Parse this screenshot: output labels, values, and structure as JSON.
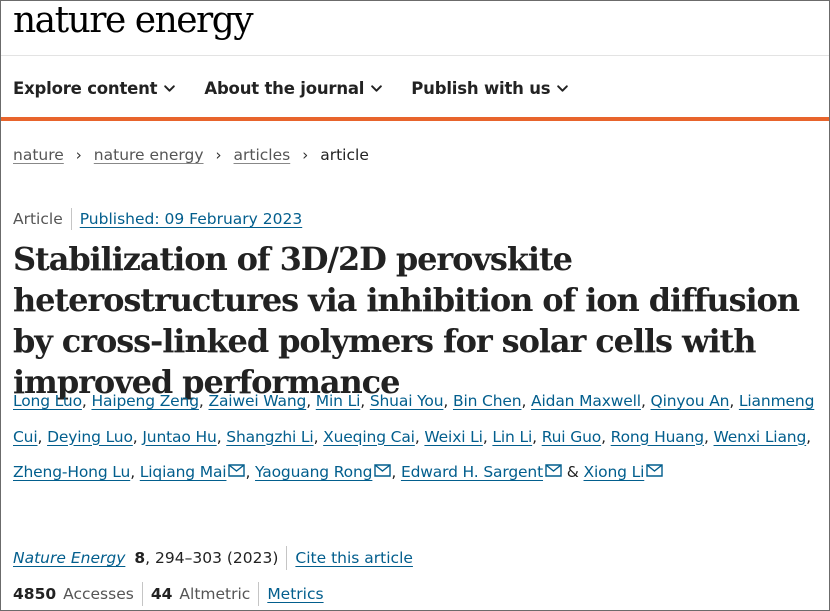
{
  "site": {
    "logo": "nature energy"
  },
  "nav": {
    "items": [
      {
        "label": "Explore content"
      },
      {
        "label": "About the journal"
      },
      {
        "label": "Publish with us"
      }
    ]
  },
  "colors": {
    "accent": "#e8642c",
    "link": "#025e8d"
  },
  "breadcrumb": {
    "items": [
      "nature",
      "nature energy",
      "articles"
    ],
    "current": "article",
    "separator": "›"
  },
  "article": {
    "type": "Article",
    "published": "Published: 09 February 2023",
    "title": "Stabilization of 3D/2D perovskite heterostructures via inhibition of ion diffusion by cross-linked polymers for solar cells with improved performance",
    "authors": [
      {
        "name": "Long Luo"
      },
      {
        "name": "Haipeng Zeng"
      },
      {
        "name": "Zaiwei Wang"
      },
      {
        "name": "Min Li"
      },
      {
        "name": "Shuai You"
      },
      {
        "name": "Bin Chen"
      },
      {
        "name": "Aidan Maxwell"
      },
      {
        "name": "Qinyou An"
      },
      {
        "name": "Lianmeng Cui"
      },
      {
        "name": "Deying Luo"
      },
      {
        "name": "Juntao Hu"
      },
      {
        "name": "Shangzhi Li"
      },
      {
        "name": "Xueqing Cai"
      },
      {
        "name": "Weixi Li"
      },
      {
        "name": "Lin Li"
      },
      {
        "name": "Rui Guo"
      },
      {
        "name": "Rong Huang"
      },
      {
        "name": "Wenxi Liang"
      },
      {
        "name": "Zheng-Hong Lu"
      },
      {
        "name": "Liqiang Mai",
        "corresponding": true
      },
      {
        "name": "Yaoguang Rong",
        "corresponding": true
      },
      {
        "name": "Edward H. Sargent",
        "corresponding": true
      },
      {
        "name": "Xiong Li",
        "corresponding": true
      }
    ],
    "authors_joiner": "&",
    "mail_icon": "envelope-icon",
    "citation": {
      "journal": "Nature Energy",
      "volume": "8",
      "pages_year": ", 294–303 (2023)",
      "cite_label": "Cite this article"
    },
    "metrics": {
      "accesses": "4850",
      "accesses_label": "Accesses",
      "altmetric": "44",
      "altmetric_label": "Altmetric",
      "metrics_link": "Metrics"
    }
  }
}
